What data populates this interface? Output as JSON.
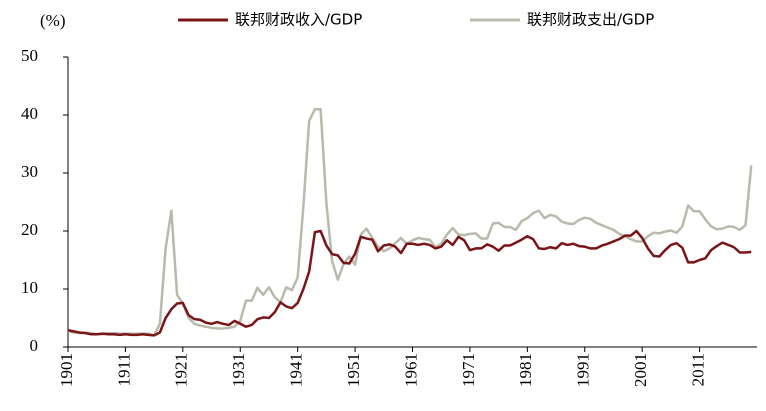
{
  "chart_data": {
    "type": "line",
    "y_unit_label": "(%)",
    "x": [
      1901,
      1902,
      1903,
      1904,
      1905,
      1906,
      1907,
      1908,
      1909,
      1910,
      1911,
      1912,
      1913,
      1914,
      1915,
      1916,
      1917,
      1918,
      1919,
      1920,
      1921,
      1922,
      1923,
      1924,
      1925,
      1926,
      1927,
      1928,
      1929,
      1930,
      1931,
      1932,
      1933,
      1934,
      1935,
      1936,
      1937,
      1938,
      1939,
      1940,
      1941,
      1942,
      1943,
      1944,
      1945,
      1946,
      1947,
      1948,
      1949,
      1950,
      1951,
      1952,
      1953,
      1954,
      1955,
      1956,
      1957,
      1958,
      1959,
      1960,
      1961,
      1962,
      1963,
      1964,
      1965,
      1966,
      1967,
      1968,
      1969,
      1970,
      1971,
      1972,
      1973,
      1974,
      1975,
      1976,
      1977,
      1978,
      1979,
      1980,
      1981,
      1982,
      1983,
      1984,
      1985,
      1986,
      1987,
      1988,
      1989,
      1990,
      1991,
      1992,
      1993,
      1994,
      1995,
      1996,
      1997,
      1998,
      1999,
      2000,
      2001,
      2002,
      2003,
      2004,
      2005,
      2006,
      2007,
      2008,
      2009,
      2010,
      2011,
      2012,
      2013,
      2014,
      2015,
      2016,
      2017,
      2018,
      2019,
      2020
    ],
    "series": [
      {
        "name": "联邦财政收入/GDP",
        "color": "#7b1416",
        "values": [
          2.9,
          2.7,
          2.5,
          2.4,
          2.2,
          2.2,
          2.3,
          2.2,
          2.2,
          2.1,
          2.2,
          2.1,
          2.1,
          2.2,
          2.1,
          2.0,
          2.5,
          5.0,
          6.5,
          7.5,
          7.6,
          5.5,
          4.8,
          4.7,
          4.2,
          4.0,
          4.3,
          4.0,
          3.8,
          4.5,
          4.0,
          3.5,
          3.8,
          4.8,
          5.1,
          5.0,
          6.0,
          7.7,
          7.0,
          6.7,
          7.6,
          10.0,
          13.0,
          19.8,
          20.0,
          17.5,
          16.0,
          15.8,
          14.5,
          14.4,
          16.1,
          19.0,
          18.7,
          18.5,
          16.5,
          17.5,
          17.7,
          17.3,
          16.2,
          17.8,
          17.8,
          17.6,
          17.8,
          17.6,
          17.0,
          17.3,
          18.4,
          17.6,
          19.0,
          18.4,
          16.7,
          17.0,
          17.0,
          17.7,
          17.3,
          16.6,
          17.5,
          17.5,
          18.0,
          18.5,
          19.1,
          18.6,
          17.0,
          16.9,
          17.2,
          17.0,
          17.9,
          17.6,
          17.8,
          17.4,
          17.3,
          17.0,
          17.0,
          17.5,
          17.8,
          18.2,
          18.6,
          19.2,
          19.2,
          20.0,
          18.8,
          17.0,
          15.7,
          15.6,
          16.7,
          17.6,
          17.9,
          17.1,
          14.6,
          14.6,
          15.0,
          15.3,
          16.7,
          17.4,
          18.0,
          17.6,
          17.2,
          16.3,
          16.3,
          16.4
        ]
      },
      {
        "name": "联邦财政支出/GDP",
        "color": "#b8baac",
        "values": [
          2.7,
          2.5,
          2.4,
          2.5,
          2.4,
          2.2,
          2.2,
          2.4,
          2.4,
          2.3,
          2.3,
          2.3,
          2.3,
          2.3,
          2.3,
          2.0,
          4.0,
          17.0,
          23.5,
          9.0,
          7.5,
          5.0,
          4.0,
          3.7,
          3.5,
          3.3,
          3.2,
          3.2,
          3.3,
          3.5,
          4.5,
          8.0,
          8.0,
          10.2,
          9.0,
          10.3,
          8.6,
          7.7,
          10.3,
          9.8,
          12.0,
          24.3,
          39.0,
          41.0,
          41.0,
          24.8,
          14.8,
          11.6,
          14.3,
          15.6,
          14.2,
          19.4,
          20.4,
          18.8,
          17.3,
          16.5,
          17.0,
          17.9,
          18.8,
          17.8,
          18.4,
          18.8,
          18.6,
          18.5,
          17.2,
          17.8,
          19.4,
          20.5,
          19.4,
          19.3,
          19.5,
          19.6,
          18.7,
          18.7,
          21.3,
          21.4,
          20.7,
          20.7,
          20.2,
          21.7,
          22.2,
          23.1,
          23.5,
          22.2,
          22.8,
          22.5,
          21.6,
          21.3,
          21.2,
          21.9,
          22.3,
          22.1,
          21.4,
          21.0,
          20.6,
          20.2,
          19.5,
          19.1,
          18.6,
          18.2,
          18.2,
          19.1,
          19.7,
          19.6,
          19.9,
          20.1,
          19.7,
          20.8,
          24.4,
          23.4,
          23.4,
          22.0,
          20.8,
          20.3,
          20.4,
          20.8,
          20.7,
          20.2,
          21.0,
          31.3
        ]
      }
    ],
    "xlim": [
      1901,
      2021
    ],
    "xticks": [
      1901,
      1911,
      1921,
      1931,
      1941,
      1951,
      1961,
      1971,
      1981,
      1991,
      2001,
      2011
    ],
    "ylim": [
      0,
      50
    ],
    "yticks": [
      0,
      10,
      20,
      30,
      40,
      50
    ],
    "grid": false,
    "legend": "top"
  }
}
